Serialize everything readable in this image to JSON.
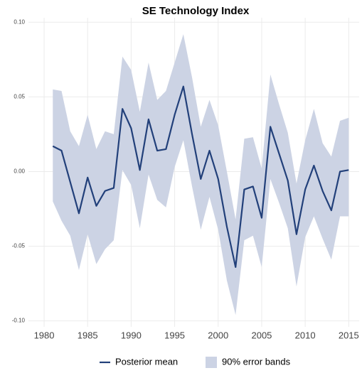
{
  "chart_data": {
    "type": "line",
    "title": "SE Technology Index",
    "x": [
      1981,
      1982,
      1983,
      1984,
      1985,
      1986,
      1987,
      1988,
      1989,
      1990,
      1991,
      1992,
      1993,
      1994,
      1995,
      1996,
      1997,
      1998,
      1999,
      2000,
      2001,
      2002,
      2003,
      2004,
      2005,
      2006,
      2007,
      2008,
      2009,
      2010,
      2011,
      2012,
      2013,
      2014,
      2015
    ],
    "series": [
      {
        "name": "Posterior mean",
        "color": "#22407a",
        "values": [
          0.017,
          0.014,
          -0.007,
          -0.028,
          -0.004,
          -0.023,
          -0.013,
          -0.011,
          0.042,
          0.029,
          0.001,
          0.035,
          0.014,
          0.015,
          0.038,
          0.057,
          0.025,
          -0.005,
          0.014,
          -0.005,
          -0.037,
          -0.064,
          -0.012,
          -0.01,
          -0.031,
          0.03,
          0.012,
          -0.006,
          -0.042,
          -0.012,
          0.004,
          -0.013,
          -0.026,
          0.0,
          0.001
        ]
      },
      {
        "name": "90% error bands",
        "color": "#ccd3e4",
        "upper": [
          0.055,
          0.054,
          0.027,
          0.017,
          0.038,
          0.015,
          0.027,
          0.025,
          0.077,
          0.068,
          0.04,
          0.073,
          0.048,
          0.054,
          0.073,
          0.092,
          0.063,
          0.03,
          0.048,
          0.031,
          0.0,
          -0.032,
          0.022,
          0.023,
          0.002,
          0.065,
          0.045,
          0.026,
          -0.008,
          0.021,
          0.042,
          0.019,
          0.01,
          0.034,
          0.036
        ],
        "lower": [
          -0.02,
          -0.033,
          -0.043,
          -0.066,
          -0.042,
          -0.062,
          -0.052,
          -0.046,
          0.001,
          -0.009,
          -0.038,
          -0.002,
          -0.019,
          -0.024,
          0.003,
          0.021,
          -0.01,
          -0.039,
          -0.017,
          -0.039,
          -0.073,
          -0.096,
          -0.046,
          -0.043,
          -0.064,
          -0.005,
          -0.021,
          -0.038,
          -0.077,
          -0.044,
          -0.03,
          -0.045,
          -0.059,
          -0.03,
          -0.03
        ]
      }
    ],
    "xlim": [
      1978.2,
      2016.2
    ],
    "xticks": [
      1980,
      1985,
      1990,
      1995,
      2000,
      2005,
      2010,
      2015
    ],
    "ylim": [
      -0.104,
      0.103
    ],
    "yticks": [
      {
        "value": -0.1,
        "label": "-0.10"
      },
      -0.05,
      {
        "value": 0,
        "label": "0.00"
      },
      0.05,
      {
        "value": 0.1,
        "label": "0.10"
      }
    ],
    "grid": true,
    "legend": "bottom"
  }
}
